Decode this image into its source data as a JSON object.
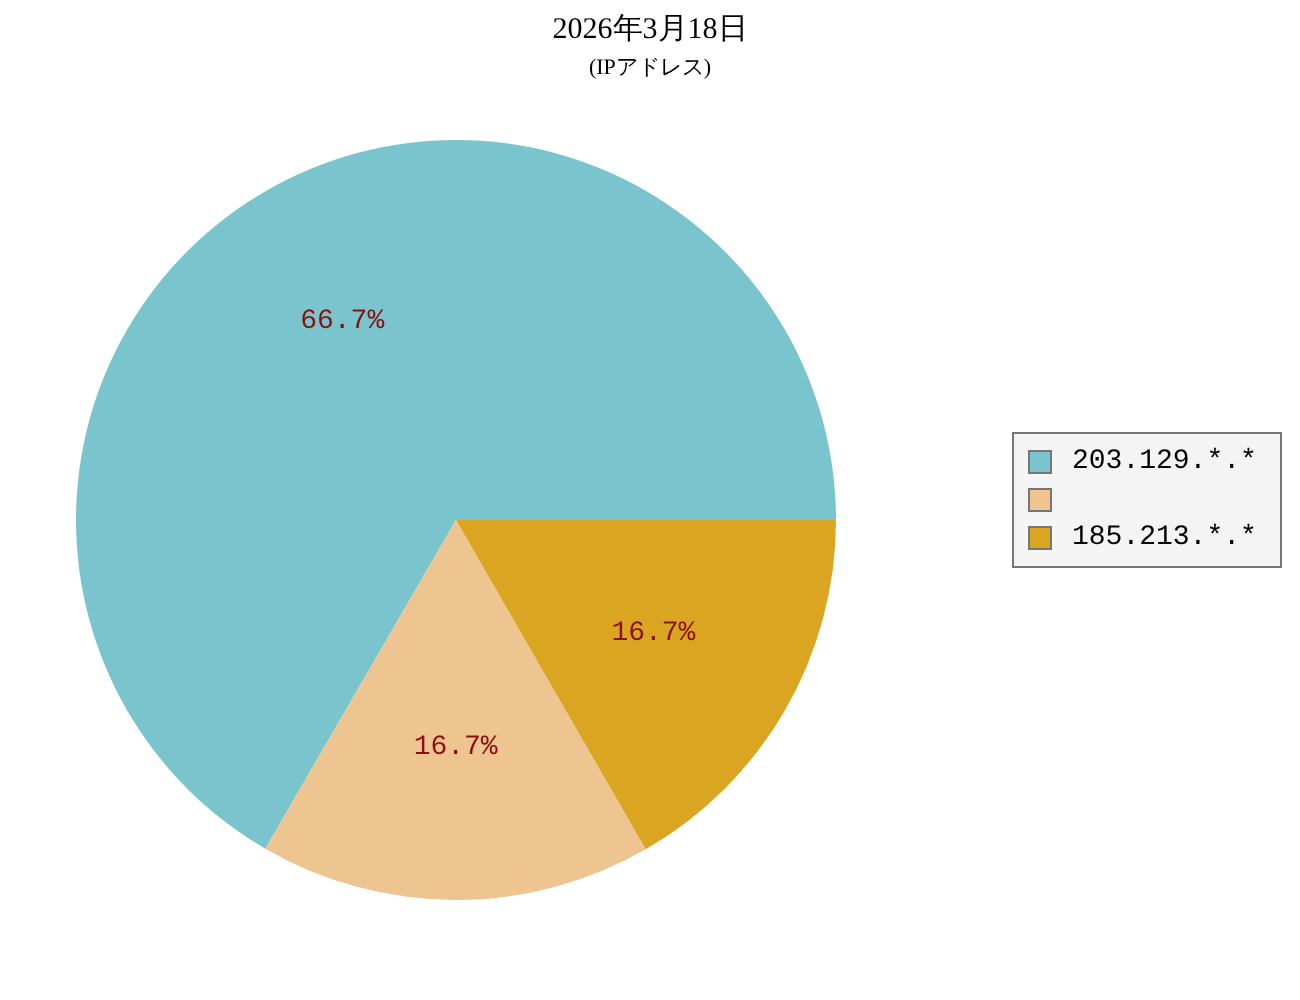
{
  "chart_data": {
    "type": "pie",
    "title": "2026年3月18日",
    "subtitle": "(IPアドレス)",
    "categories": [
      "203.129.*.*",
      null,
      "185.213.*.*"
    ],
    "values": [
      66.7,
      16.7,
      16.7
    ],
    "colors": [
      "#7ac5cd",
      "#eec591",
      "#daa520"
    ],
    "value_labels": [
      "66.7%",
      "16.7%",
      "16.7%"
    ],
    "legend": "right"
  }
}
